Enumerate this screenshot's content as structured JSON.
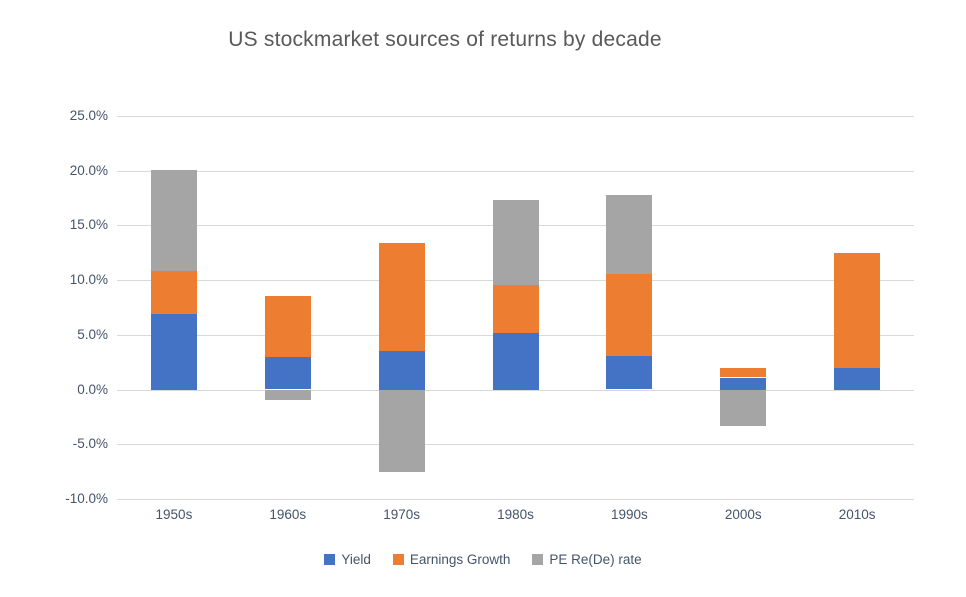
{
  "chart_data": {
    "type": "bar",
    "stacked": true,
    "title": "US stockmarket sources of returns by decade",
    "categories": [
      "1950s",
      "1960s",
      "1970s",
      "1980s",
      "1990s",
      "2000s",
      "2010s"
    ],
    "series": [
      {
        "name": "Yield",
        "color": "#4472C4",
        "values": [
          6.9,
          3.0,
          3.5,
          5.2,
          3.1,
          1.1,
          2.0
        ]
      },
      {
        "name": "Earnings Growth",
        "color": "#ED7D31",
        "values": [
          3.9,
          5.6,
          9.9,
          4.4,
          7.5,
          0.9,
          10.5
        ]
      },
      {
        "name": "PE Re(De) rate",
        "color": "#A5A5A5",
        "values": [
          9.3,
          -1.0,
          -7.5,
          7.7,
          7.2,
          -3.3,
          0.0
        ]
      }
    ],
    "ylim": [
      -10,
      25
    ],
    "y_ticks": [
      {
        "value": 25,
        "label": "25.0%"
      },
      {
        "value": 20,
        "label": "20.0%"
      },
      {
        "value": 15,
        "label": "15.0%"
      },
      {
        "value": 10,
        "label": "10.0%"
      },
      {
        "value": 5,
        "label": "5.0%"
      },
      {
        "value": 0,
        "label": "0.0%"
      },
      {
        "value": -5,
        "label": "-5.0%"
      },
      {
        "value": -10,
        "label": "-10.0%"
      }
    ],
    "grid": true,
    "legend_position": "bottom",
    "xlabel": "",
    "ylabel": ""
  },
  "colors": {
    "title_text": "#595959",
    "axis_text": "#44546A",
    "gridline": "#D9D9D9",
    "background": "#FFFFFF"
  }
}
